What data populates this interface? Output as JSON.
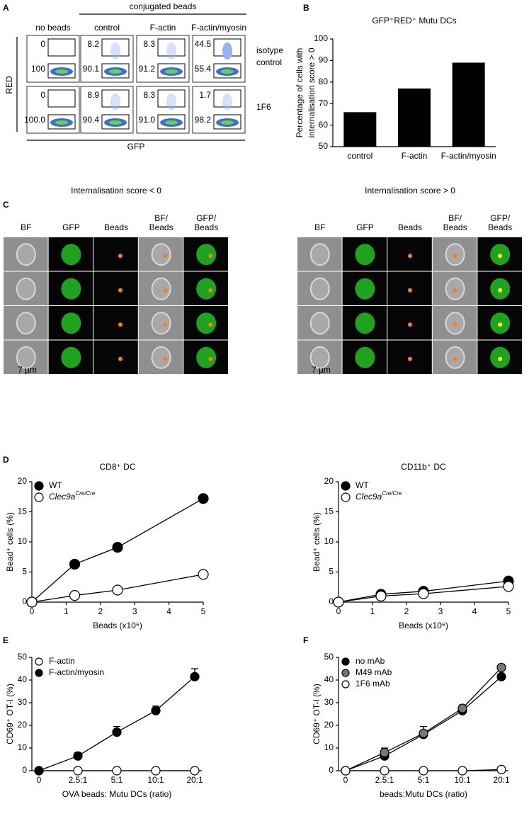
{
  "panel_a": {
    "letter": "A",
    "group_label": "conjugated beads",
    "columns": [
      "no beads",
      "control",
      "F-actin",
      "F-actin/myosin"
    ],
    "y_label": "RED",
    "x_label": "GFP",
    "rows": [
      {
        "label": [
          "isotype",
          "control"
        ],
        "upper": [
          "0",
          "8.2",
          "8.3",
          "44.5"
        ],
        "lower": [
          "100",
          "90.1",
          "91.2",
          "55.4"
        ]
      },
      {
        "label": [
          "1F6"
        ],
        "upper": [
          "0",
          "8.9",
          "8.3",
          "1.7"
        ],
        "lower": [
          "100.0",
          "90.4",
          "91.0",
          "98.2"
        ]
      }
    ]
  },
  "panel_c": {
    "letter": "C",
    "scale_label": "7 µm",
    "columns": [
      [
        "BF"
      ],
      [
        "GFP"
      ],
      [
        "Beads"
      ],
      [
        "BF/",
        "Beads"
      ],
      [
        "GFP/",
        "Beads"
      ]
    ],
    "groups": [
      {
        "title": "Internalisation score < 0"
      },
      {
        "title": "Internalisation score > 0"
      }
    ]
  },
  "chart_data": [
    {
      "type": "bar",
      "letter": "B",
      "title": "GFP⁺RED⁺ Mutu DCs",
      "ylabel": [
        "Percentage of cells with",
        "internalisation score > 0"
      ],
      "categories": [
        "control",
        "F-actin",
        "F-actin/myosin"
      ],
      "values": [
        66,
        77,
        89
      ],
      "color": "#000000",
      "ylim": [
        50,
        100
      ],
      "yticks": [
        50,
        60,
        70,
        80,
        90,
        100
      ]
    },
    {
      "type": "line",
      "letter": "D",
      "title": "CD8⁺ DC",
      "xlabel": "Beads (x10⁶)",
      "ylabel": "Bead⁺ cells (%)",
      "x": [
        0,
        1.25,
        2.5,
        5
      ],
      "xlim": [
        0,
        5
      ],
      "xticks": [
        0,
        1,
        2,
        3,
        4,
        5
      ],
      "ylim": [
        0,
        20
      ],
      "yticks": [
        0,
        5,
        10,
        15,
        20
      ],
      "series": [
        {
          "name": "WT",
          "color": "#000000",
          "values": [
            0,
            6.3,
            9.1,
            17.2
          ]
        },
        {
          "name": "Clec9a",
          "name_sup": "Cre/Cre",
          "color": "#ffffff",
          "values": [
            0,
            1.1,
            2.0,
            4.6
          ]
        }
      ]
    },
    {
      "type": "line",
      "title": "CD11b⁺ DC",
      "xlabel": "Beads (x10⁶)",
      "ylabel": "Bead⁺ cells (%)",
      "x": [
        0,
        1.25,
        2.5,
        5
      ],
      "xlim": [
        0,
        5
      ],
      "xticks": [
        0,
        1,
        2,
        3,
        4,
        5
      ],
      "ylim": [
        0,
        20
      ],
      "yticks": [
        0,
        5,
        10,
        15,
        20
      ],
      "series": [
        {
          "name": "WT",
          "color": "#000000",
          "values": [
            0,
            1.3,
            1.8,
            3.5
          ]
        },
        {
          "name": "Clec9a",
          "name_sup": "Cre/Cre",
          "color": "#ffffff",
          "values": [
            0,
            1.0,
            1.4,
            2.6
          ]
        }
      ]
    },
    {
      "type": "line",
      "letter": "E",
      "xlabel": "OVA beads: Mutu DCs (ratio)",
      "ylabel": "CD69⁺ OT-I (%)",
      "categories": [
        "0",
        "2.5:1",
        "5:1",
        "10:1",
        "20:1"
      ],
      "ylim": [
        0,
        50
      ],
      "yticks": [
        0,
        10,
        20,
        30,
        40,
        50
      ],
      "series": [
        {
          "name": "F-actin",
          "color": "#ffffff",
          "values": [
            0,
            0,
            0,
            0,
            0
          ]
        },
        {
          "name": "F-actin/myosin",
          "color": "#000000",
          "values": [
            0,
            6.5,
            17,
            26.5,
            41.5
          ],
          "errors": [
            0,
            1.5,
            2.5,
            2,
            3.5
          ]
        }
      ]
    },
    {
      "type": "line",
      "letter": "F",
      "xlabel": "beads:Mutu DCs (ratio)",
      "ylabel": "CD69⁺ OT-I (%)",
      "categories": [
        "0",
        "2.5:1",
        "5:1",
        "10:1",
        "20:1"
      ],
      "ylim": [
        0,
        50
      ],
      "yticks": [
        0,
        10,
        20,
        30,
        40,
        50
      ],
      "series": [
        {
          "name": "no mAb",
          "color": "#000000",
          "values": [
            0,
            6.5,
            16,
            26.5,
            41.5
          ]
        },
        {
          "name": "M49 mAb",
          "color": "#777777",
          "values": [
            0,
            8,
            16.5,
            27.5,
            45.5
          ],
          "errors": [
            0,
            2,
            3,
            1.5,
            1.5
          ]
        },
        {
          "name": "1F6 mAb",
          "color": "#ffffff",
          "values": [
            0,
            0,
            0,
            0,
            0.5
          ]
        }
      ]
    }
  ]
}
